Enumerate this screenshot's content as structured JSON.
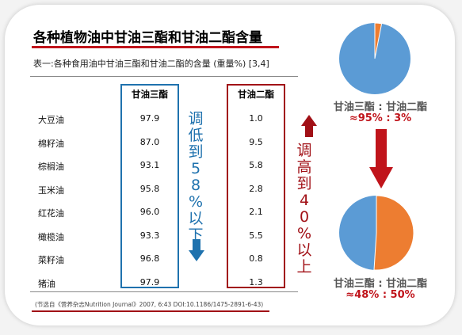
{
  "title": "各种植物油中甘油三酯和甘油二酯含量",
  "subtitle": "表一:各种食用油中甘油三酯和甘油二酯的含量 (重量%) [3,4]",
  "table": {
    "headers": {
      "tg": "甘油三酯",
      "dg": "甘油二酯"
    },
    "rows": [
      {
        "name": "大豆油",
        "tg": "97.9",
        "dg": "1.0"
      },
      {
        "name": "棉籽油",
        "tg": "87.0",
        "dg": "9.5"
      },
      {
        "name": "棕榈油",
        "tg": "93.1",
        "dg": "5.8"
      },
      {
        "name": "玉米油",
        "tg": "95.8",
        "dg": "2.8"
      },
      {
        "name": "红花油",
        "tg": "96.0",
        "dg": "2.1"
      },
      {
        "name": "橄榄油",
        "tg": "93.3",
        "dg": "5.5"
      },
      {
        "name": "菜籽油",
        "tg": "96.8",
        "dg": "0.8"
      },
      {
        "name": "猪油",
        "tg": "97.9",
        "dg": "1.3"
      }
    ]
  },
  "annotations": {
    "lower": "调低到58%以下",
    "higher": "调高到40%以上"
  },
  "source": "(节选自《营养杂志Nutrition Journal》2007, 6:43 DOI:10.1186/1475-2891-6-43)",
  "pies": {
    "before": {
      "label": "甘油三酯 : 甘油二酯",
      "value": "≈95% : 3%",
      "tg": 95,
      "dg": 3
    },
    "after": {
      "label": "甘油三酯 : 甘油二酯",
      "value": "≈48% : 50%",
      "tg": 48,
      "dg": 50
    }
  },
  "colors": {
    "blue": "#1f72ae",
    "red": "#a11016",
    "pie_blue": "#5b9bd5",
    "pie_orange": "#ed7d31",
    "arrow_red": "#c0141b"
  }
}
